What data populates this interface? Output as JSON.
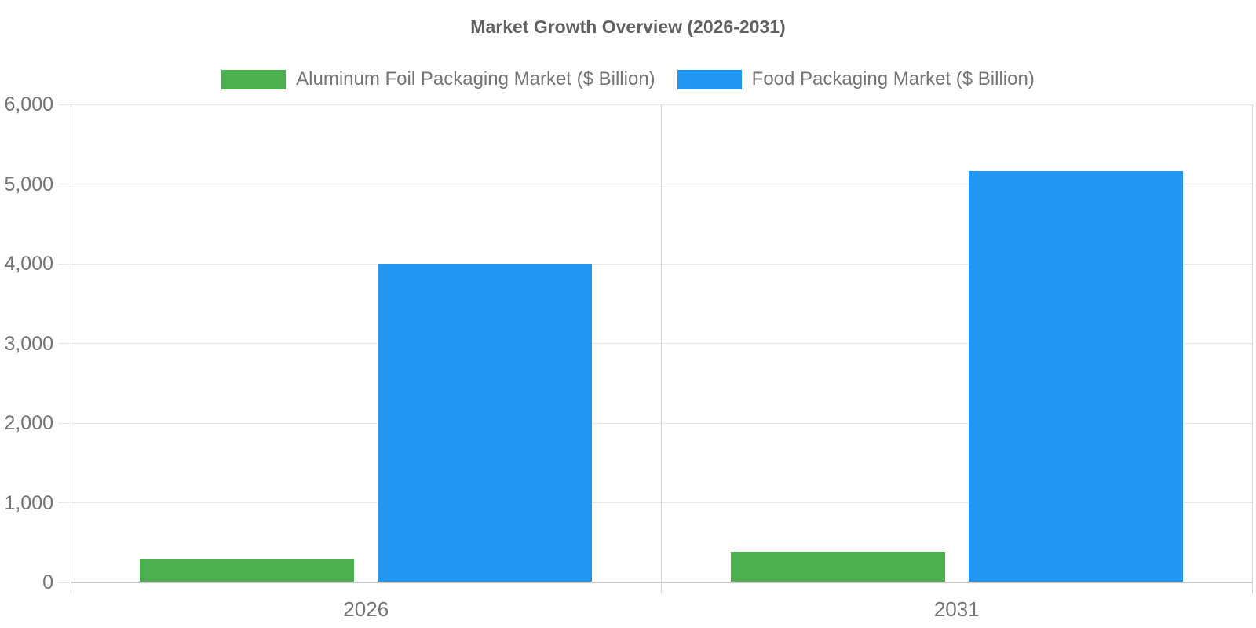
{
  "chart_data": {
    "type": "bar",
    "title": "Market Growth Overview (2026-2031)",
    "categories": [
      "2026",
      "2031"
    ],
    "series": [
      {
        "name": "Aluminum Foil Packaging Market ($ Billion)",
        "color": "#4CAF50",
        "values": [
          300,
          380
        ]
      },
      {
        "name": "Food Packaging Market ($ Billion)",
        "color": "#2196F3",
        "values": [
          4000,
          5160
        ]
      }
    ],
    "ylim": [
      0,
      6000
    ],
    "yticks": [
      0,
      1000,
      2000,
      3000,
      4000,
      5000,
      6000
    ],
    "ytick_labels": [
      "0",
      "1,000",
      "2,000",
      "3,000",
      "4,000",
      "5,000",
      "6,000"
    ],
    "grid": true,
    "legend_position": "top"
  },
  "colors": {
    "gridline": "#e6e6e6",
    "baseline": "#cccccc",
    "axis_line": "#d6d6d6",
    "tick_text": "#757575",
    "title_text": "#616161"
  }
}
